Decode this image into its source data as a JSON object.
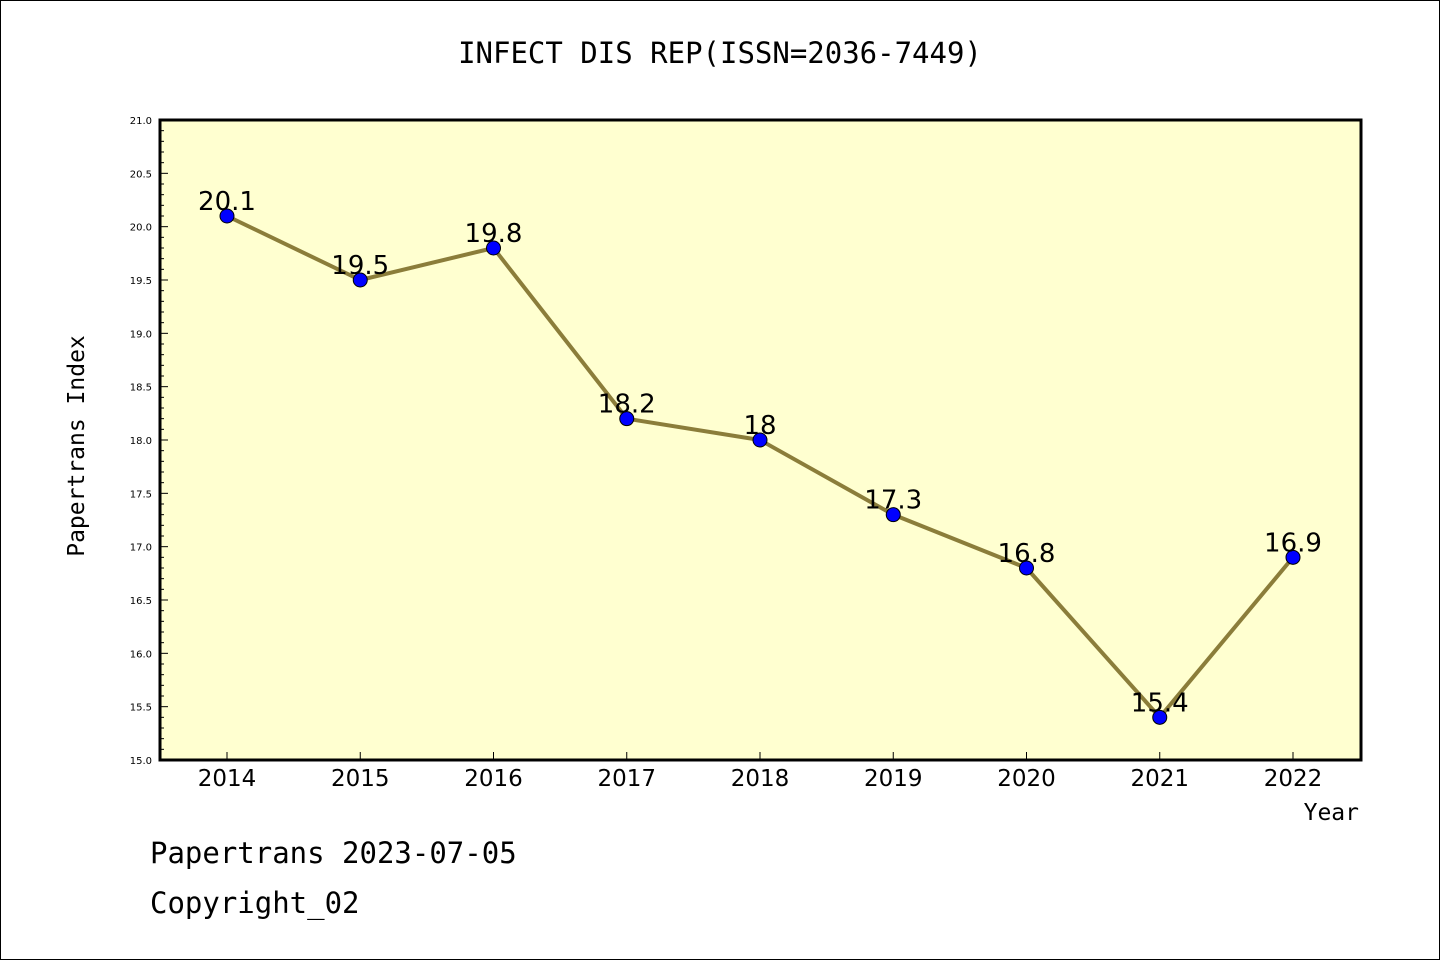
{
  "chart_data": {
    "type": "line",
    "title": "INFECT DIS REP(ISSN=2036-7449)",
    "xlabel": "Year",
    "ylabel": "Papertrans Index",
    "categories": [
      "2014",
      "2015",
      "2016",
      "2017",
      "2018",
      "2019",
      "2020",
      "2021",
      "2022"
    ],
    "values": [
      20.1,
      19.5,
      19.8,
      18.2,
      18,
      17.3,
      16.8,
      15.4,
      16.9
    ],
    "value_labels": [
      "20.1",
      "19.5",
      "19.8",
      "18.2",
      "18",
      "17.3",
      "16.8",
      "15.4",
      "16.9"
    ],
    "ylim": [
      15.0,
      21.0
    ],
    "yticks": [
      "15.0",
      "15.5",
      "16.0",
      "16.5",
      "17.0",
      "17.5",
      "18.0",
      "18.5",
      "19.0",
      "19.5",
      "20.0",
      "20.5",
      "21.0"
    ],
    "grid": false,
    "colors": {
      "line": "#8b7d3a",
      "marker": "#0000ff",
      "plot_bg": "#ffffd0"
    }
  },
  "footer": {
    "line1": "Papertrans 2023-07-05",
    "line2": "Copyright_02"
  }
}
